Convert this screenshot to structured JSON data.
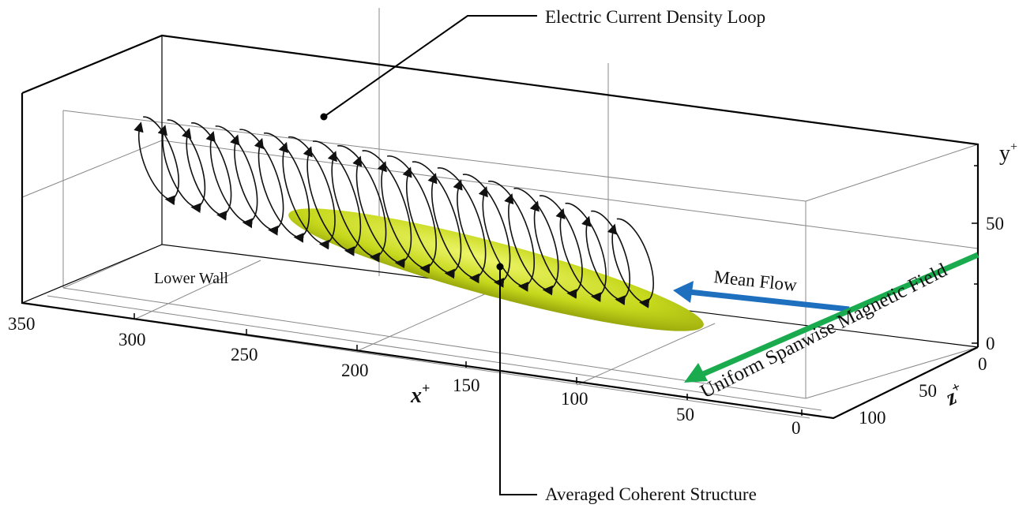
{
  "labels": {
    "loop": "Electric Current Density Loop",
    "structure": "Averaged Coherent Structure",
    "lower_wall": "Lower Wall",
    "mean_flow": "Mean Flow",
    "magnetic_field": "Uniform Spanwise Magnetic Field"
  },
  "axes": {
    "x": {
      "title": "x",
      "sup": "+",
      "ticks": [
        "350",
        "300",
        "250",
        "200",
        "150",
        "100",
        "50",
        "0"
      ]
    },
    "y": {
      "title": "y",
      "sup": "+",
      "ticks": [
        "50",
        "0"
      ]
    },
    "z": {
      "title": "z",
      "sup": "+",
      "ticks": [
        "0",
        "50",
        "100"
      ]
    }
  },
  "colors": {
    "structure": "#c8dc1e",
    "mean_flow_arrow": "#1f6fbf",
    "magnetic_arrow": "#1bab4f",
    "loops": "#111111"
  }
}
